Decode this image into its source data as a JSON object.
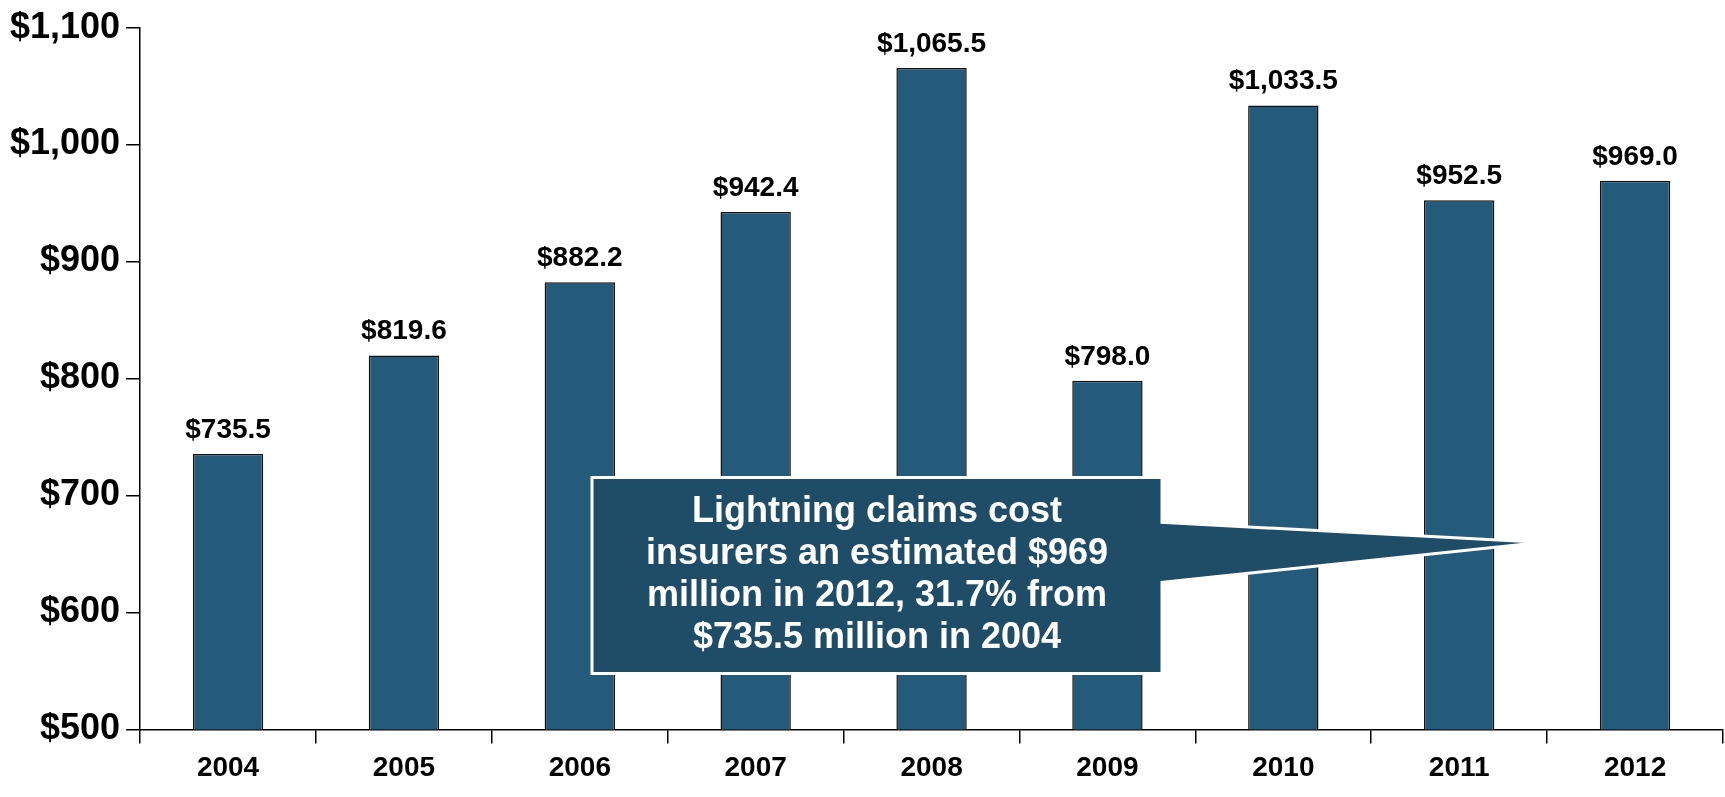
{
  "chart_data": {
    "type": "bar",
    "categories": [
      "2004",
      "2005",
      "2006",
      "2007",
      "2008",
      "2009",
      "2010",
      "2011",
      "2012"
    ],
    "values": [
      735.5,
      819.6,
      882.2,
      942.4,
      1065.5,
      798.0,
      1033.5,
      952.5,
      969.0
    ],
    "value_labels": [
      "$735.5",
      "$819.6",
      "$882.2",
      "$942.4",
      "$1,065.5",
      "$798.0",
      "$1,033.5",
      "$952.5",
      "$969.0"
    ],
    "color": "#245a7a",
    "ylim": [
      500,
      1100
    ],
    "yticks": [
      {
        "value": 500,
        "label": "$500"
      },
      {
        "value": 600,
        "label": "$600"
      },
      {
        "value": 700,
        "label": "$700"
      },
      {
        "value": 800,
        "label": "$800"
      },
      {
        "value": 900,
        "label": "$900"
      },
      {
        "value": 1000,
        "label": "$1,000"
      },
      {
        "value": 1100,
        "label": "$1,100"
      }
    ],
    "grid": false,
    "legend": false,
    "annotations": [
      "Lightning claims cost insurers an estimated $969 million in 2012, 31.7% from $735.5 million in 2004"
    ]
  }
}
